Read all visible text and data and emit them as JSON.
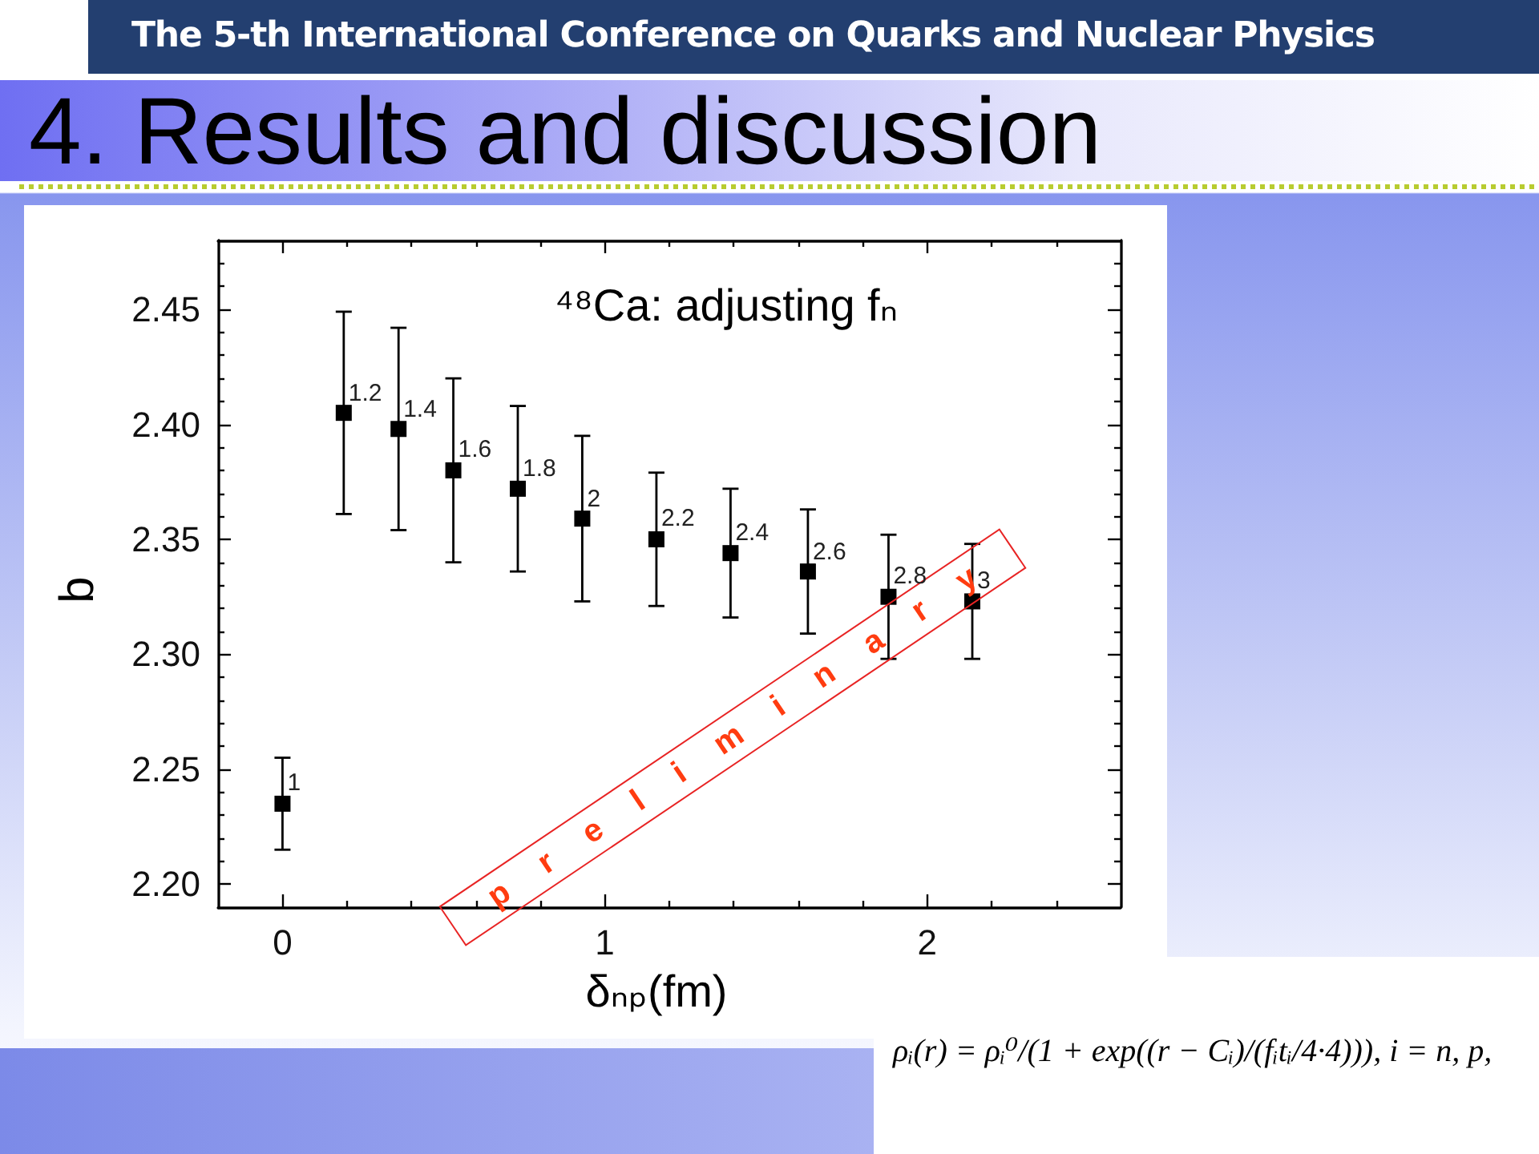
{
  "chart_data": {
    "type": "scatter",
    "title": "4. Results and discussion",
    "subtitle": "The 5-th International Conference on Quarks and Nuclear Physics",
    "xlabel": "δₙₚ(fm)",
    "ylabel": "b",
    "x": [
      0.0,
      0.19,
      0.36,
      0.53,
      0.73,
      0.93,
      1.16,
      1.39,
      1.63,
      1.88,
      2.14
    ],
    "values": [
      2.235,
      2.405,
      2.398,
      2.38,
      2.372,
      2.359,
      2.35,
      2.344,
      2.336,
      2.325,
      2.323
    ],
    "errors": [
      0.02,
      0.044,
      0.044,
      0.04,
      0.036,
      0.036,
      0.029,
      0.028,
      0.027,
      0.027,
      0.025
    ],
    "color": "#000000",
    "marker": "square",
    "xlim": [
      -0.2,
      2.6
    ],
    "ylim": [
      2.19,
      2.48
    ],
    "xticks": [
      0,
      {
        "value": 0.2,
        "label": null
      },
      {
        "value": 0.4,
        "label": null
      },
      {
        "value": 0.6,
        "label": null
      },
      {
        "value": 0.8,
        "label": null
      },
      1,
      {
        "value": 1.2,
        "label": null
      },
      {
        "value": 1.4,
        "label": null
      },
      {
        "value": 1.6,
        "label": null
      },
      {
        "value": 1.8,
        "label": null
      },
      2,
      {
        "value": 2.2,
        "label": null
      },
      {
        "value": 2.4,
        "label": null
      }
    ],
    "yticks": [
      {
        "value": 2.2,
        "label": "2.20"
      },
      {
        "value": 2.21,
        "label": null
      },
      {
        "value": 2.22,
        "label": null
      },
      {
        "value": 2.23,
        "label": null
      },
      {
        "value": 2.24,
        "label": null
      },
      2.25,
      {
        "value": 2.26,
        "label": null
      },
      {
        "value": 2.27,
        "label": null
      },
      {
        "value": 2.28,
        "label": null
      },
      {
        "value": 2.29,
        "label": null
      },
      {
        "value": 2.3,
        "label": "2.30"
      },
      {
        "value": 2.31,
        "label": null
      },
      {
        "value": 2.32,
        "label": null
      },
      {
        "value": 2.33,
        "label": null
      },
      {
        "value": 2.34,
        "label": null
      },
      2.35,
      {
        "value": 2.36,
        "label": null
      },
      {
        "value": 2.37,
        "label": null
      },
      {
        "value": 2.38,
        "label": null
      },
      {
        "value": 2.39,
        "label": null
      },
      {
        "value": 2.4,
        "label": "2.40"
      },
      {
        "value": 2.41,
        "label": null
      },
      {
        "value": 2.42,
        "label": null
      },
      {
        "value": 2.43,
        "label": null
      },
      {
        "value": 2.44,
        "label": null
      },
      2.45,
      {
        "value": 2.46,
        "label": null
      },
      {
        "value": 2.47,
        "label": null
      }
    ],
    "annotations": [
      "⁴⁸Ca: adjusting fₙ",
      "p r e l i m i n a r y",
      "ρᵢ(r) = ρᵢ⁰/(1 + exp((r − Cᵢ)/(fᵢtᵢ/4·4))),   i = n, p,",
      {
        "text": "1",
        "x": 0.0,
        "y": 2.235
      },
      {
        "text": "1.2",
        "x": 0.19,
        "y": 2.405
      },
      {
        "text": "1.4",
        "x": 0.36,
        "y": 2.398
      },
      {
        "text": "1.6",
        "x": 0.53,
        "y": 2.38
      },
      {
        "text": "1.8",
        "x": 0.73,
        "y": 2.372
      },
      {
        "text": "2",
        "x": 0.93,
        "y": 2.359
      },
      {
        "text": "2.2",
        "x": 1.16,
        "y": 2.35
      },
      {
        "text": "2.4",
        "x": 1.39,
        "y": 2.344
      },
      {
        "text": "2.6",
        "x": 1.63,
        "y": 2.336
      },
      {
        "text": "2.8",
        "x": 1.88,
        "y": 2.325
      },
      {
        "text": "3",
        "x": 2.14,
        "y": 2.323
      }
    ]
  }
}
